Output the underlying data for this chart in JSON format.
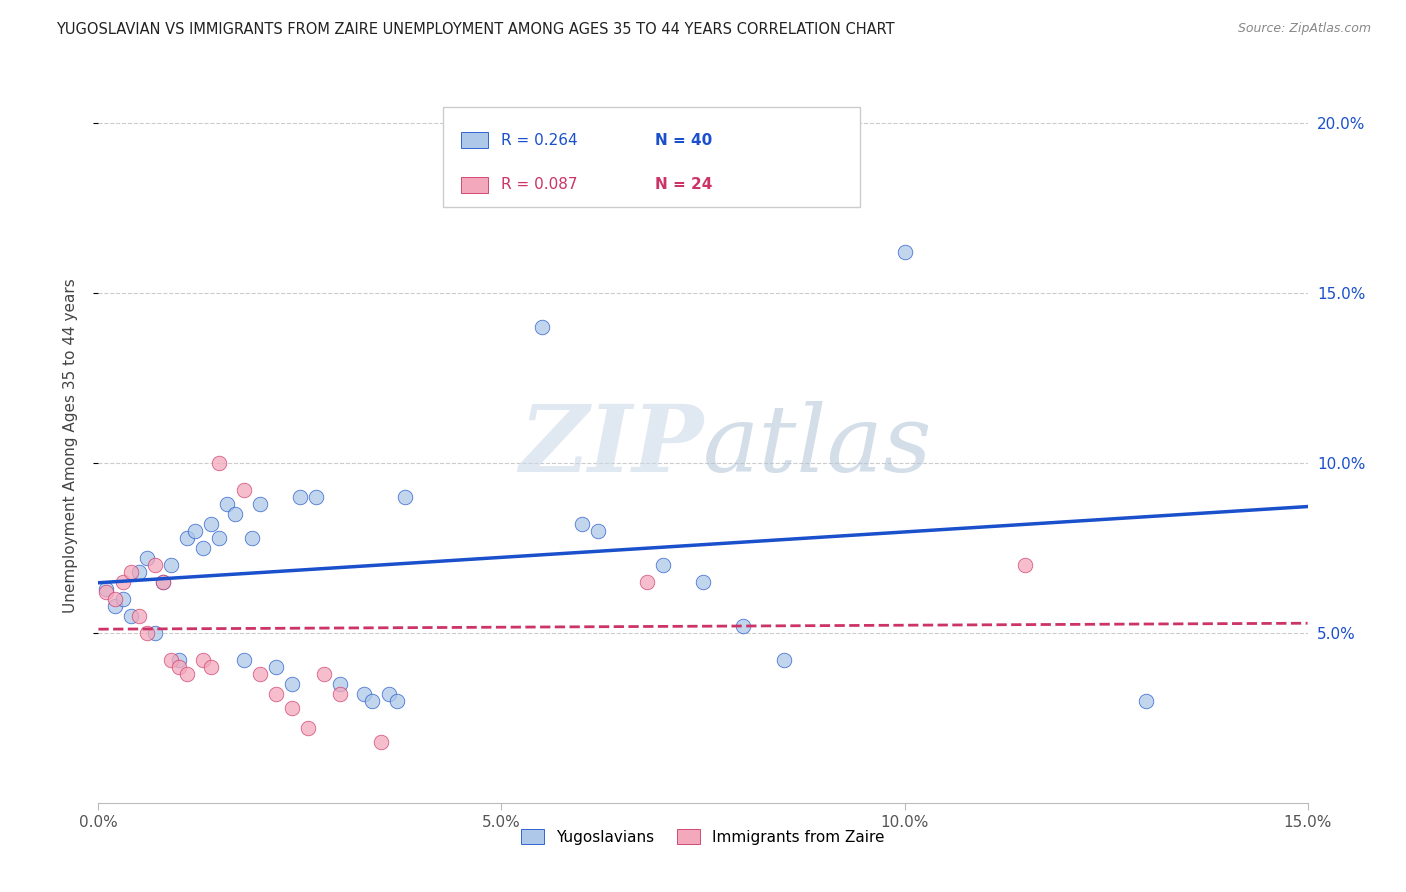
{
  "title": "YUGOSLAVIAN VS IMMIGRANTS FROM ZAIRE UNEMPLOYMENT AMONG AGES 35 TO 44 YEARS CORRELATION CHART",
  "source": "Source: ZipAtlas.com",
  "ylabel": "Unemployment Among Ages 35 to 44 years",
  "xlim": [
    0.0,
    0.15
  ],
  "ylim": [
    0.0,
    0.21
  ],
  "xticks": [
    0.0,
    0.05,
    0.1,
    0.15
  ],
  "yticks": [
    0.05,
    0.1,
    0.15,
    0.2
  ],
  "xtick_labels": [
    "0.0%",
    "5.0%",
    "10.0%",
    "15.0%"
  ],
  "ytick_labels": [
    "5.0%",
    "10.0%",
    "15.0%",
    "20.0%"
  ],
  "watermark_part1": "ZIP",
  "watermark_part2": "atlas",
  "legend_entries": [
    {
      "label": "Yugoslavians",
      "color": "#adc8e8"
    },
    {
      "label": "Immigrants from Zaire",
      "color": "#f4a8bb"
    }
  ],
  "blue_R": "0.264",
  "blue_N": "40",
  "pink_R": "0.087",
  "pink_N": "24",
  "blue_scatter": [
    [
      0.001,
      0.063
    ],
    [
      0.002,
      0.058
    ],
    [
      0.003,
      0.06
    ],
    [
      0.004,
      0.055
    ],
    [
      0.005,
      0.068
    ],
    [
      0.006,
      0.072
    ],
    [
      0.007,
      0.05
    ],
    [
      0.008,
      0.065
    ],
    [
      0.009,
      0.07
    ],
    [
      0.01,
      0.042
    ],
    [
      0.011,
      0.078
    ],
    [
      0.012,
      0.08
    ],
    [
      0.013,
      0.075
    ],
    [
      0.014,
      0.082
    ],
    [
      0.015,
      0.078
    ],
    [
      0.016,
      0.088
    ],
    [
      0.017,
      0.085
    ],
    [
      0.018,
      0.042
    ],
    [
      0.019,
      0.078
    ],
    [
      0.02,
      0.088
    ],
    [
      0.022,
      0.04
    ],
    [
      0.024,
      0.035
    ],
    [
      0.025,
      0.09
    ],
    [
      0.027,
      0.09
    ],
    [
      0.03,
      0.035
    ],
    [
      0.033,
      0.032
    ],
    [
      0.034,
      0.03
    ],
    [
      0.036,
      0.032
    ],
    [
      0.037,
      0.03
    ],
    [
      0.038,
      0.09
    ],
    [
      0.05,
      0.178
    ],
    [
      0.055,
      0.14
    ],
    [
      0.06,
      0.082
    ],
    [
      0.062,
      0.08
    ],
    [
      0.07,
      0.07
    ],
    [
      0.075,
      0.065
    ],
    [
      0.08,
      0.052
    ],
    [
      0.085,
      0.042
    ],
    [
      0.1,
      0.162
    ],
    [
      0.13,
      0.03
    ]
  ],
  "pink_scatter": [
    [
      0.001,
      0.062
    ],
    [
      0.002,
      0.06
    ],
    [
      0.003,
      0.065
    ],
    [
      0.004,
      0.068
    ],
    [
      0.005,
      0.055
    ],
    [
      0.006,
      0.05
    ],
    [
      0.007,
      0.07
    ],
    [
      0.008,
      0.065
    ],
    [
      0.009,
      0.042
    ],
    [
      0.01,
      0.04
    ],
    [
      0.011,
      0.038
    ],
    [
      0.013,
      0.042
    ],
    [
      0.014,
      0.04
    ],
    [
      0.015,
      0.1
    ],
    [
      0.018,
      0.092
    ],
    [
      0.02,
      0.038
    ],
    [
      0.022,
      0.032
    ],
    [
      0.024,
      0.028
    ],
    [
      0.026,
      0.022
    ],
    [
      0.028,
      0.038
    ],
    [
      0.03,
      0.032
    ],
    [
      0.035,
      0.018
    ],
    [
      0.068,
      0.065
    ],
    [
      0.115,
      0.07
    ]
  ],
  "blue_line_color": "#1a50cc",
  "pink_line_color": "#cc3366",
  "background_color": "#ffffff",
  "grid_color": "#cccccc"
}
